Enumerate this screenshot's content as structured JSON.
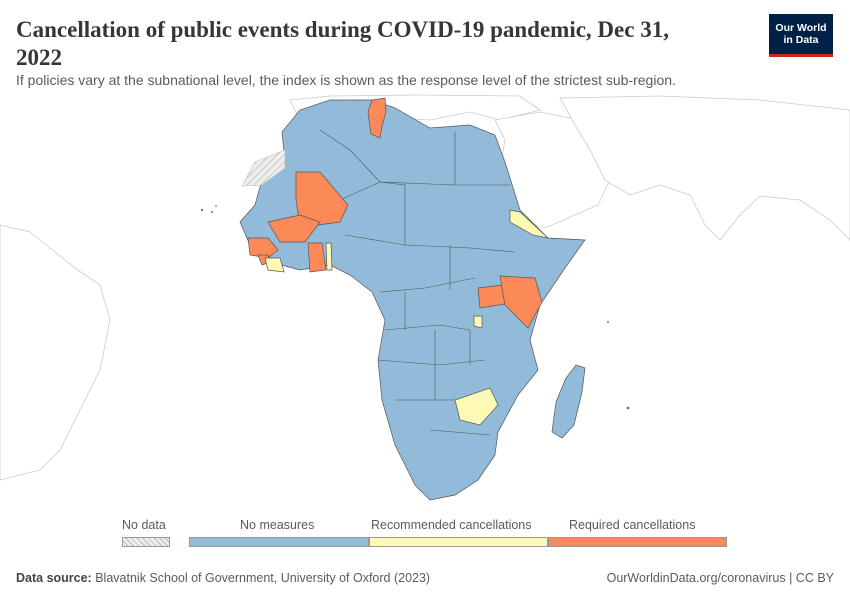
{
  "header": {
    "title": "Cancellation of public events during COVID-19 pandemic, Dec 31, 2022",
    "subtitle": "If policies vary at the subnational level, the index is shown as the response level of the strictest sub-region.",
    "logo_line1": "Our World",
    "logo_line2": "in Data"
  },
  "colors": {
    "no_data": "#eeeeee",
    "no_measures": "#91bbd9",
    "recommended": "#fff9b6",
    "required": "#fc8a59",
    "outside": "#ffffff",
    "border": "#555555"
  },
  "legend": {
    "no_data": "No data",
    "no_measures": "No measures",
    "recommended": "Recommended cancellations",
    "required": "Required cancellations"
  },
  "map_data": {
    "required": [
      "Tunisia",
      "Mali",
      "Burkina Faso",
      "Guinea",
      "Sierra Leone",
      "Ghana",
      "Uganda",
      "Kenya"
    ],
    "recommended": [
      "Liberia",
      "Togo",
      "Eritrea",
      "Burundi",
      "Zimbabwe"
    ],
    "no_data": [
      "Western Sahara"
    ],
    "no_measures_default": "Rest of Africa"
  },
  "footer": {
    "source_label": "Data source:",
    "source_text": "Blavatnik School of Government, University of Oxford (2023)",
    "url_text": "OurWorldinData.org/coronavirus | CC BY"
  }
}
